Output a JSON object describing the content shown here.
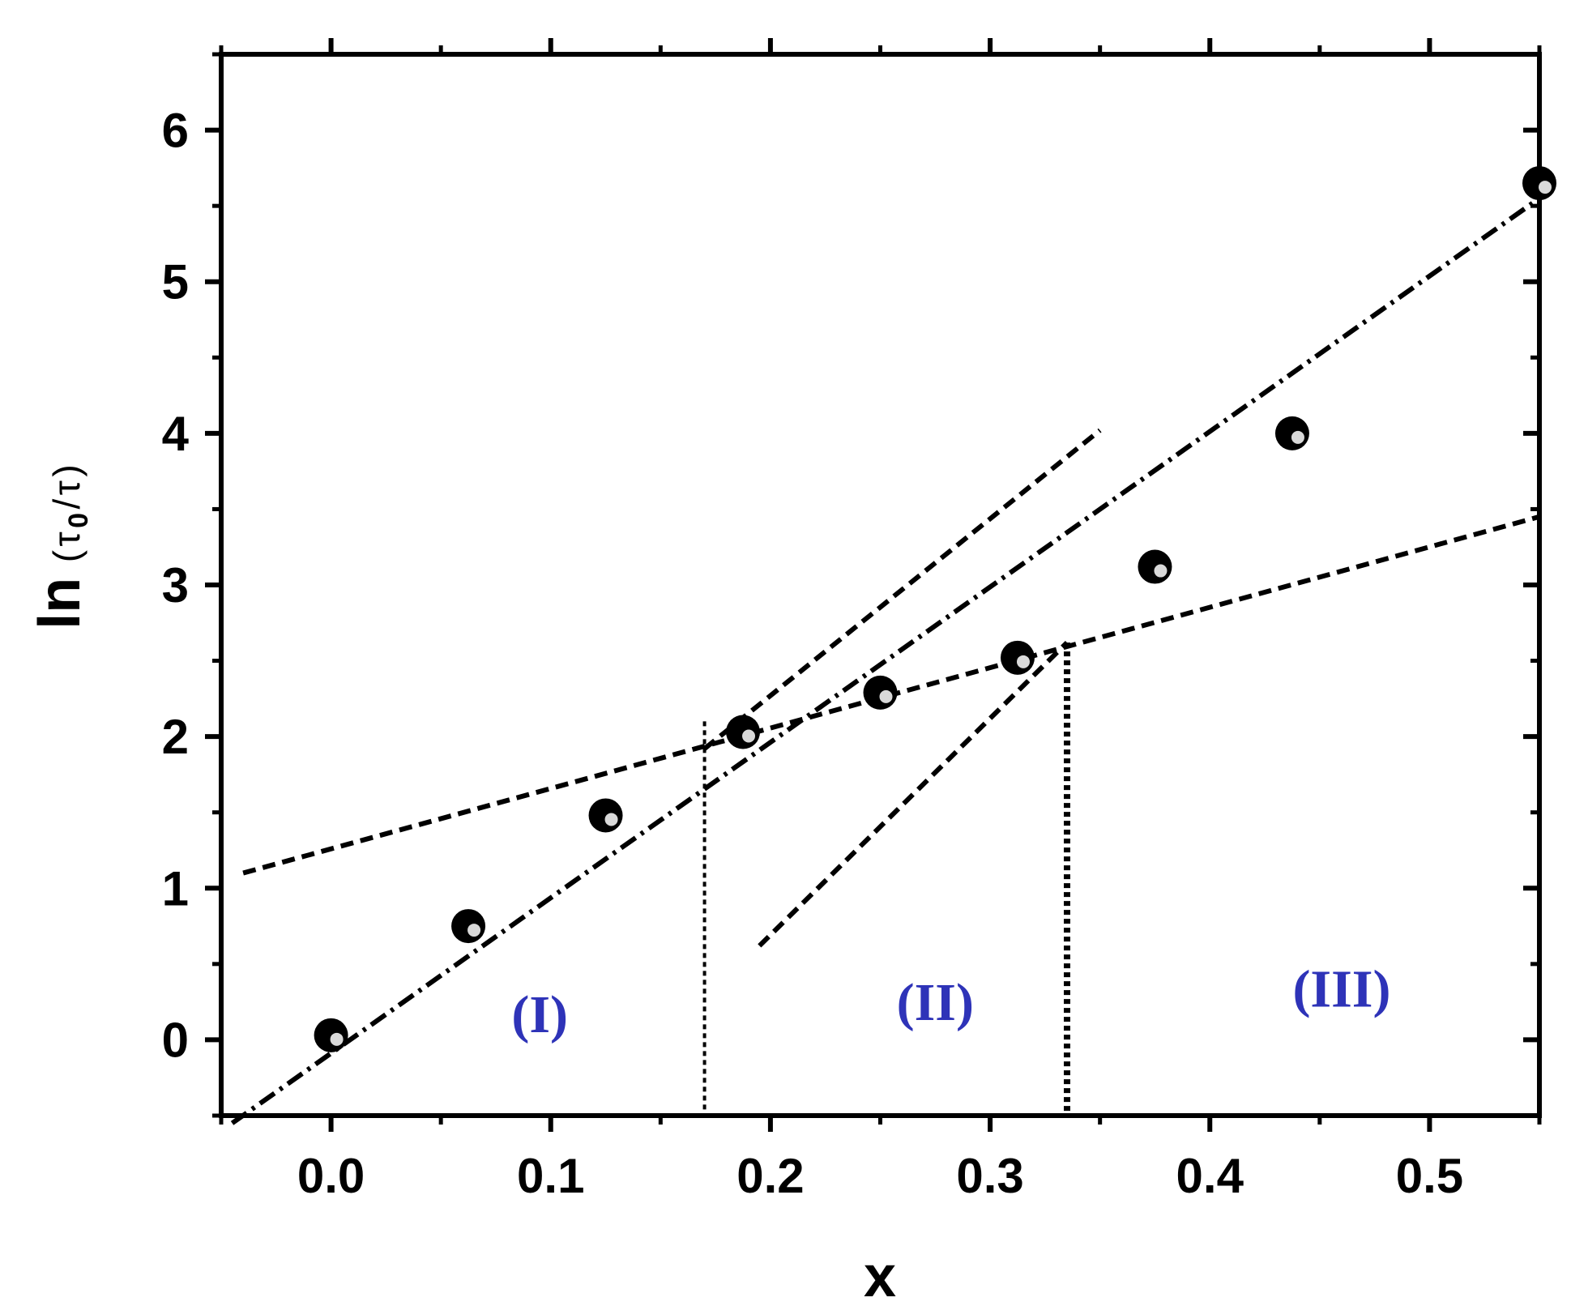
{
  "chart_data": {
    "type": "scatter",
    "title": "",
    "xlabel": "x",
    "ylabel": {
      "prefix": "ln",
      "open": "(",
      "tau1": "τ",
      "sub": "0",
      "slash": "/",
      "tau2": "τ",
      "close": ")"
    },
    "xlim": [
      -0.05,
      0.55
    ],
    "ylim": [
      -0.5,
      6.5
    ],
    "xticks": [
      0.0,
      0.1,
      0.2,
      0.3,
      0.4,
      0.5
    ],
    "xtick_labels": [
      "0.0",
      "0.1",
      "0.2",
      "0.3",
      "0.4",
      "0.5"
    ],
    "yticks": [
      0,
      1,
      2,
      3,
      4,
      5,
      6
    ],
    "ytick_labels": [
      "0",
      "1",
      "2",
      "3",
      "4",
      "5",
      "6"
    ],
    "grid": false,
    "series": [
      {
        "marker": "filled-circle",
        "x": [
          0.0,
          0.0625,
          0.125,
          0.1875,
          0.25,
          0.3125,
          0.375,
          0.4375,
          0.55
        ],
        "y": [
          0.03,
          0.75,
          1.48,
          2.03,
          2.29,
          2.52,
          3.12,
          4.0,
          5.65
        ]
      }
    ],
    "fit_lines": [
      {
        "style": "dash-dot",
        "x": [
          -0.045,
          0.55
        ],
        "y": [
          -0.55,
          5.55
        ]
      },
      {
        "style": "dashed",
        "x": [
          -0.04,
          0.55
        ],
        "y": [
          1.1,
          3.45
        ]
      },
      {
        "style": "dashed",
        "x": [
          0.17,
          0.35
        ],
        "y": [
          1.92,
          4.02
        ]
      },
      {
        "style": "dashed",
        "x": [
          0.195,
          0.335
        ],
        "y": [
          0.62,
          2.62
        ]
      }
    ],
    "vlines": [
      {
        "x": 0.17,
        "y_top": 2.1
      },
      {
        "x": 0.335,
        "y_top": 2.62
      }
    ],
    "region_labels": [
      {
        "text": "(I)",
        "x": 0.095,
        "y": 0.05
      },
      {
        "text": "(II)",
        "x": 0.275,
        "y": 0.13
      },
      {
        "text": "(III)",
        "x": 0.46,
        "y": 0.22
      }
    ],
    "colors": {
      "axis": "#000000",
      "marker": "#000000",
      "region_label": "#2e33b8"
    }
  }
}
